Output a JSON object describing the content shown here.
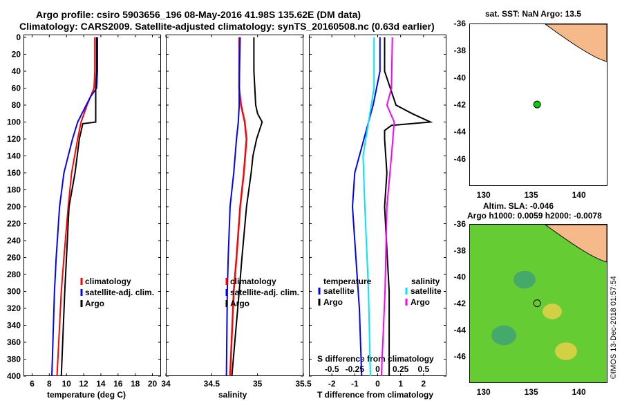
{
  "header": {
    "line1": "Argo profile: csiro 5903656_196 08-May-2016 41.98S 135.62E (DM data)",
    "line2": "Climatology: CARS2009. Satellite-adjusted climatology: synTS_20160508.nc (0.63d earlier)"
  },
  "colors": {
    "clim": "#ff0000",
    "sat": "#0000ff",
    "argo": "#000000",
    "sat_s": "#00e5ff",
    "clim_s": "#ff00ff",
    "land": "#f5b98a",
    "sea_top": "#ffffff",
    "sea_bot": "#66cc33"
  },
  "depth_axis": {
    "ticks": [
      0,
      20,
      40,
      60,
      80,
      100,
      120,
      140,
      160,
      180,
      200,
      220,
      240,
      260,
      280,
      300,
      320,
      340,
      360,
      380,
      400
    ],
    "ylim": [
      0,
      400
    ]
  },
  "chart_data": [
    {
      "type": "line",
      "name": "temperature",
      "xlabel": "temperature (deg C)",
      "xlim": [
        5,
        21
      ],
      "xticks": [
        "6",
        "8",
        "10",
        "12",
        "14",
        "16",
        "18",
        "20"
      ],
      "xtickvals": [
        6,
        8,
        10,
        12,
        14,
        16,
        18,
        20
      ],
      "series": [
        {
          "name": "climatology",
          "color": "#ff0000",
          "depth": [
            0,
            40,
            60,
            80,
            100,
            120,
            160,
            200,
            260,
            300,
            400
          ],
          "values": [
            13.3,
            13.3,
            13.2,
            12.4,
            11.7,
            11.3,
            10.6,
            10.2,
            9.7,
            9.4,
            8.9
          ]
        },
        {
          "name": "satellite-adj. clim.",
          "color": "#0000ff",
          "depth": [
            0,
            40,
            60,
            70,
            100,
            120,
            160,
            200,
            260,
            300,
            400
          ],
          "values": [
            13.6,
            13.6,
            13.5,
            12.8,
            11.3,
            10.7,
            9.7,
            9.2,
            8.8,
            8.6,
            8.3
          ]
        },
        {
          "name": "Argo",
          "color": "#000000",
          "depth": [
            0,
            40,
            60,
            80,
            100,
            102,
            120,
            160,
            200,
            260,
            300,
            400
          ],
          "values": [
            13.5,
            13.5,
            13.4,
            13.4,
            13.4,
            11.9,
            11.5,
            11.0,
            10.3,
            10.0,
            9.8,
            9.4
          ]
        }
      ],
      "legend": [
        "climatology",
        "satellite-adj. clim.",
        "Argo"
      ]
    },
    {
      "type": "line",
      "name": "salinity",
      "xlabel": "salinity",
      "xlim": [
        34,
        35.5
      ],
      "xticks": [
        "34",
        "34.5",
        "35",
        "35.5"
      ],
      "xtickvals": [
        34,
        34.5,
        35,
        35.5
      ],
      "series": [
        {
          "name": "climatology",
          "color": "#ff0000",
          "depth": [
            0,
            60,
            80,
            100,
            120,
            160,
            200,
            260,
            300,
            400
          ],
          "values": [
            34.8,
            34.8,
            34.82,
            34.86,
            34.88,
            34.85,
            34.81,
            34.77,
            34.74,
            34.7
          ],
          "lw": 2.5
        },
        {
          "name": "satellite-adj. clim.",
          "color": "#0000ff",
          "depth": [
            0,
            60,
            80,
            100,
            120,
            160,
            200,
            260,
            300,
            400
          ],
          "values": [
            34.81,
            34.8,
            34.8,
            34.79,
            34.77,
            34.74,
            34.7,
            34.68,
            34.67,
            34.66
          ]
        },
        {
          "name": "Argo",
          "color": "#000000",
          "depth": [
            0,
            40,
            80,
            90,
            100,
            120,
            140,
            160,
            200,
            260,
            300,
            400
          ],
          "values": [
            34.96,
            34.96,
            34.98,
            35.0,
            35.05,
            34.99,
            34.95,
            34.93,
            34.88,
            34.83,
            34.8,
            34.72
          ]
        }
      ],
      "legend": [
        "climatology",
        "satellite-adj. clim.",
        "Argo"
      ]
    },
    {
      "type": "line",
      "name": "differences",
      "xlabel": "T difference from climatology",
      "top_xlabel": "S difference from climatology",
      "xlim": [
        -3,
        3
      ],
      "xticks": [
        "-2",
        "-1",
        "0",
        "1",
        "2"
      ],
      "xtickvals": [
        -2,
        -1,
        0,
        1,
        2
      ],
      "top_xticks": [
        "-0.5",
        "-0.25",
        "0",
        "0.25",
        "0.5"
      ],
      "top_xtickvals": [
        -0.5,
        -0.25,
        0,
        0.25,
        0.5
      ],
      "series": [
        {
          "name": "temperature satellite",
          "color": "#0000ff",
          "depth": [
            0,
            40,
            80,
            100,
            120,
            160,
            200,
            240,
            280,
            320,
            400
          ],
          "values": [
            0.1,
            0.1,
            -0.2,
            -0.4,
            -0.6,
            -1.0,
            -1.1,
            -1.0,
            -0.9,
            -0.8,
            -0.7
          ]
        },
        {
          "name": "temperature Argo",
          "color": "#000000",
          "depth": [
            0,
            40,
            80,
            90,
            100,
            104,
            110,
            120,
            160,
            200,
            300,
            400
          ],
          "values": [
            0.3,
            0.3,
            0.8,
            1.5,
            2.3,
            0.6,
            0.3,
            0.3,
            0.4,
            0.3,
            0.5,
            0.5
          ]
        },
        {
          "name": "salinity satellite",
          "color": "#00e5ff",
          "depth": [
            0,
            60,
            100,
            140,
            200,
            300,
            400
          ],
          "values": [
            -0.04,
            -0.04,
            -0.1,
            -0.16,
            -0.14,
            -0.1,
            -0.08
          ]
        },
        {
          "name": "salinity Argo",
          "color": "#ff00ff",
          "depth": [
            0,
            60,
            80,
            100,
            140,
            200,
            300,
            400
          ],
          "values": [
            0.16,
            0.15,
            0.1,
            0.18,
            0.15,
            0.1,
            0.08,
            0.04
          ]
        }
      ],
      "legend_temp_title": "temperature",
      "legend_sal_title": "salinity",
      "legend_temp": [
        "satellite",
        "Argo"
      ],
      "legend_sal": [
        "satellite",
        "Argo"
      ]
    },
    {
      "type": "map",
      "name": "sst-map",
      "title": "sat. SST: NaN Argo: 13.5",
      "xticks": [
        "130",
        "135",
        "140"
      ],
      "yticks": [
        "-36",
        "-38",
        "-40",
        "-42",
        "-44",
        "-46"
      ],
      "xlim": [
        128.5,
        143
      ],
      "ylim": [
        -48,
        -36
      ],
      "marker": {
        "lon": 135.62,
        "lat": -41.98
      }
    },
    {
      "type": "map",
      "name": "sla-map",
      "title1": "Altim. SLA: -0.046",
      "title2": "Argo h1000: 0.0059 h2000: -0.0078",
      "xticks": [
        "130",
        "135",
        "140"
      ],
      "yticks": [
        "-36",
        "-38",
        "-40",
        "-42",
        "-44",
        "-46"
      ],
      "xlim": [
        128.5,
        143
      ],
      "ylim": [
        -48,
        -36
      ],
      "marker": {
        "lon": 135.62,
        "lat": -41.98
      }
    }
  ],
  "legends": {
    "clim_label": "climatology",
    "sat_label": "satellite-adj. clim.",
    "argo_label": "Argo",
    "temp_title": "temperature",
    "sal_title": "salinity",
    "sat": "satellite",
    "argo": "Argo"
  },
  "watermark": "©IMOS 13-Dec-2018 01:57:54"
}
